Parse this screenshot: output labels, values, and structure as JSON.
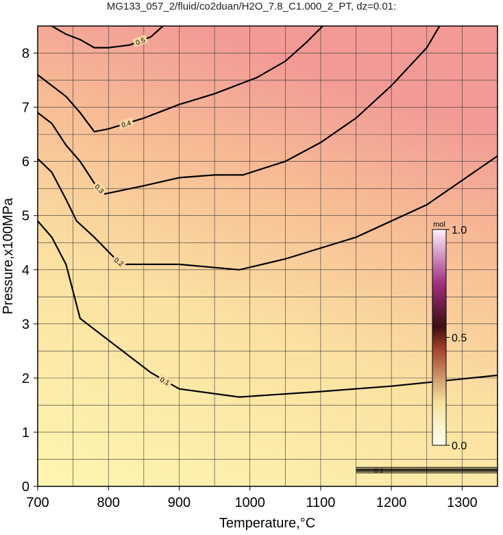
{
  "chart_data": {
    "type": "contour",
    "title": "MG133_057_2/fluid/co2duan/H2O_7.8_C1.000_2_PT, dz=0.01:",
    "xlabel": "Temperature,°C",
    "ylabel": "Pressure,x100MPa",
    "xlim": [
      700,
      1350
    ],
    "ylim": [
      0,
      8.5
    ],
    "xticks": [
      700,
      800,
      900,
      1000,
      1100,
      1200,
      1300
    ],
    "yticks": [
      0,
      1,
      2,
      3,
      4,
      5,
      6,
      7,
      8
    ],
    "xgrid": [
      750,
      850,
      950,
      1050,
      1150,
      1250
    ],
    "ygrid": [
      0.5,
      1.5,
      2.5,
      3.5,
      4.5,
      5.5,
      6.5,
      7.5
    ],
    "grid": true,
    "series": [
      {
        "name": "0.1",
        "color": "#000000",
        "x": [
          700,
          720,
          740,
          750,
          760,
          780,
          820,
          860,
          900,
          985,
          1100,
          1200,
          1350
        ],
        "values": [
          4.9,
          4.6,
          4.1,
          3.6,
          3.1,
          2.9,
          2.5,
          2.1,
          1.8,
          1.65,
          1.75,
          1.85,
          2.05
        ]
      },
      {
        "name": "0.2",
        "color": "#000000",
        "x": [
          700,
          720,
          740,
          755,
          780,
          810,
          820,
          900,
          985,
          1050,
          1150,
          1250,
          1350
        ],
        "values": [
          6.05,
          5.8,
          5.3,
          4.9,
          4.6,
          4.2,
          4.1,
          4.1,
          4.0,
          4.2,
          4.6,
          5.2,
          6.1
        ]
      },
      {
        "name": "0.3",
        "color": "#000000",
        "x": [
          700,
          720,
          740,
          760,
          780,
          795,
          850,
          900,
          950,
          990,
          1050,
          1100,
          1150,
          1200,
          1250,
          1268
        ],
        "values": [
          6.9,
          6.7,
          6.3,
          6.0,
          5.6,
          5.4,
          5.55,
          5.7,
          5.75,
          5.75,
          6.0,
          6.35,
          6.8,
          7.4,
          8.1,
          8.5
        ]
      },
      {
        "name": "0.4",
        "color": "#000000",
        "x": [
          700,
          720,
          740,
          760,
          780,
          800,
          850,
          900,
          950,
          990,
          1010,
          1050,
          1080,
          1103
        ],
        "values": [
          7.6,
          7.4,
          7.2,
          6.9,
          6.55,
          6.6,
          6.8,
          7.05,
          7.25,
          7.45,
          7.55,
          7.85,
          8.2,
          8.5
        ]
      },
      {
        "name": "0.5",
        "color": "#000000",
        "x": [
          720,
          740,
          760,
          780,
          800,
          830,
          860,
          877
        ],
        "values": [
          8.5,
          8.35,
          8.25,
          8.1,
          8.1,
          8.15,
          8.3,
          8.5
        ]
      }
    ],
    "colorbar": {
      "label": "mol",
      "lim": [
        0,
        1
      ],
      "ticks": [
        {
          "value": 0,
          "label": "0.0"
        },
        {
          "value": 0.5,
          "label": "0.5"
        },
        {
          "value": 1,
          "label": "1.0"
        }
      ]
    },
    "annotations": [
      {
        "text": "0.1",
        "x": [
          1150,
          1350
        ],
        "y": 0.3
      }
    ]
  }
}
